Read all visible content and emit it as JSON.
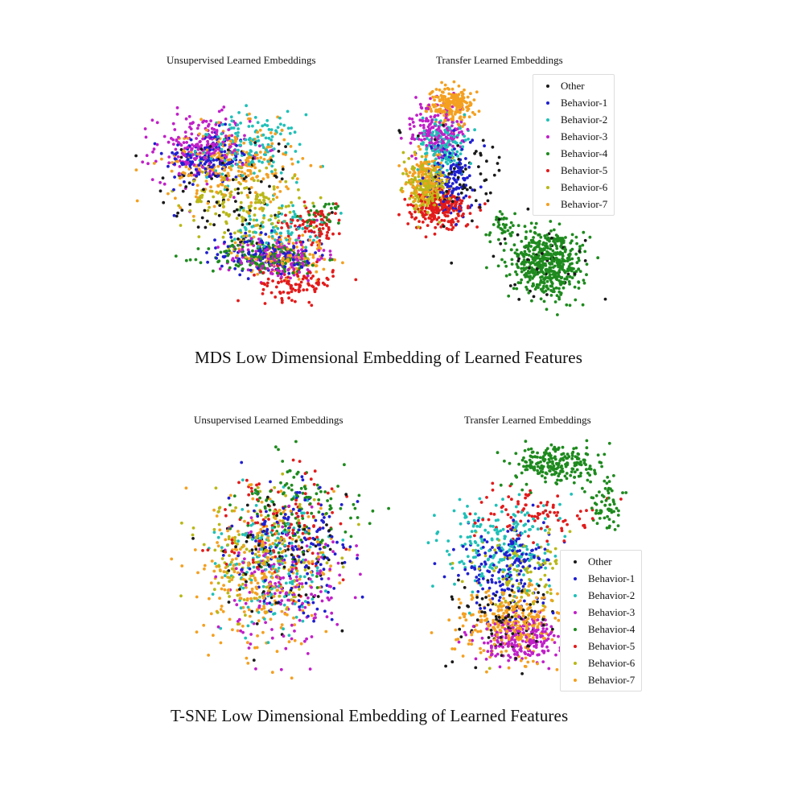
{
  "chart_data": [
    {
      "type": "scatter",
      "title": "Unsupervised Learned Embeddings",
      "group_title": "MDS Low Dimensional Embedding of Learned Features",
      "xlim": [
        0,
        100
      ],
      "ylim": [
        0,
        100
      ],
      "grid": false,
      "series": [
        {
          "name": "Other",
          "clusters": [
            {
              "cx": 40,
              "cy": 55,
              "sx": 28,
              "sy": 22,
              "n": 90
            }
          ]
        },
        {
          "name": "Behavior-1",
          "clusters": [
            {
              "cx": 30,
              "cy": 68,
              "sx": 16,
              "sy": 10,
              "n": 150
            },
            {
              "cx": 55,
              "cy": 30,
              "sx": 18,
              "sy": 8,
              "n": 120
            }
          ]
        },
        {
          "name": "Behavior-2",
          "clusters": [
            {
              "cx": 48,
              "cy": 72,
              "sx": 20,
              "sy": 12,
              "n": 150
            },
            {
              "cx": 60,
              "cy": 40,
              "sx": 16,
              "sy": 8,
              "n": 80
            }
          ]
        },
        {
          "name": "Behavior-3",
          "clusters": [
            {
              "cx": 28,
              "cy": 72,
              "sx": 18,
              "sy": 12,
              "n": 200
            },
            {
              "cx": 60,
              "cy": 28,
              "sx": 18,
              "sy": 8,
              "n": 150
            }
          ]
        },
        {
          "name": "Behavior-4",
          "clusters": [
            {
              "cx": 55,
              "cy": 28,
              "sx": 22,
              "sy": 6,
              "n": 160
            },
            {
              "cx": 80,
              "cy": 45,
              "sx": 8,
              "sy": 5,
              "n": 30
            }
          ]
        },
        {
          "name": "Behavior-5",
          "clusters": [
            {
              "cx": 75,
              "cy": 42,
              "sx": 12,
              "sy": 7,
              "n": 90
            },
            {
              "cx": 68,
              "cy": 18,
              "sx": 14,
              "sy": 6,
              "n": 100
            }
          ]
        },
        {
          "name": "Behavior-6",
          "clusters": [
            {
              "cx": 45,
              "cy": 50,
              "sx": 24,
              "sy": 14,
              "n": 150
            }
          ]
        },
        {
          "name": "Behavior-7",
          "clusters": [
            {
              "cx": 40,
              "cy": 65,
              "sx": 24,
              "sy": 14,
              "n": 250
            },
            {
              "cx": 62,
              "cy": 30,
              "sx": 18,
              "sy": 8,
              "n": 120
            }
          ]
        }
      ]
    },
    {
      "type": "scatter",
      "title": "Transfer Learned Embeddings",
      "group_title": "MDS Low Dimensional Embedding of Learned Features",
      "xlim": [
        0,
        100
      ],
      "ylim": [
        0,
        100
      ],
      "grid": false,
      "legend": "top-right",
      "series": [
        {
          "name": "Other",
          "clusters": [
            {
              "cx": 30,
              "cy": 60,
              "sx": 16,
              "sy": 18,
              "n": 60
            },
            {
              "cx": 65,
              "cy": 25,
              "sx": 20,
              "sy": 14,
              "n": 40
            }
          ]
        },
        {
          "name": "Behavior-1",
          "clusters": [
            {
              "cx": 25,
              "cy": 60,
              "sx": 10,
              "sy": 14,
              "n": 150
            }
          ]
        },
        {
          "name": "Behavior-2",
          "clusters": [
            {
              "cx": 22,
              "cy": 72,
              "sx": 9,
              "sy": 10,
              "n": 150
            }
          ]
        },
        {
          "name": "Behavior-3",
          "clusters": [
            {
              "cx": 20,
              "cy": 78,
              "sx": 10,
              "sy": 9,
              "n": 180
            }
          ]
        },
        {
          "name": "Behavior-4",
          "clusters": [
            {
              "cx": 66,
              "cy": 26,
              "sx": 14,
              "sy": 12,
              "n": 480
            },
            {
              "cx": 47,
              "cy": 40,
              "sx": 6,
              "sy": 6,
              "n": 40
            }
          ]
        },
        {
          "name": "Behavior-5",
          "clusters": [
            {
              "cx": 20,
              "cy": 47,
              "sx": 12,
              "sy": 7,
              "n": 220
            }
          ]
        },
        {
          "name": "Behavior-6",
          "clusters": [
            {
              "cx": 15,
              "cy": 55,
              "sx": 8,
              "sy": 10,
              "n": 200
            }
          ]
        },
        {
          "name": "Behavior-7",
          "clusters": [
            {
              "cx": 25,
              "cy": 88,
              "sx": 8,
              "sy": 6,
              "n": 220
            },
            {
              "cx": 14,
              "cy": 58,
              "sx": 8,
              "sy": 10,
              "n": 160
            }
          ]
        }
      ]
    },
    {
      "type": "scatter",
      "title": "Unsupervised Learned Embeddings",
      "group_title": "T-SNE Low Dimensional Embedding of Learned Features",
      "xlim": [
        0,
        100
      ],
      "ylim": [
        0,
        100
      ],
      "grid": false,
      "series": [
        {
          "name": "Other",
          "clusters": [
            {
              "cx": 50,
              "cy": 50,
              "sx": 26,
              "sy": 26,
              "n": 80
            }
          ]
        },
        {
          "name": "Behavior-1",
          "clusters": [
            {
              "cx": 55,
              "cy": 55,
              "sx": 22,
              "sy": 24,
              "n": 160
            }
          ]
        },
        {
          "name": "Behavior-2",
          "clusters": [
            {
              "cx": 45,
              "cy": 48,
              "sx": 24,
              "sy": 26,
              "n": 150
            }
          ]
        },
        {
          "name": "Behavior-3",
          "clusters": [
            {
              "cx": 52,
              "cy": 40,
              "sx": 22,
              "sy": 26,
              "n": 150
            }
          ]
        },
        {
          "name": "Behavior-4",
          "clusters": [
            {
              "cx": 58,
              "cy": 70,
              "sx": 22,
              "sy": 20,
              "n": 120
            }
          ]
        },
        {
          "name": "Behavior-5",
          "clusters": [
            {
              "cx": 50,
              "cy": 65,
              "sx": 24,
              "sy": 22,
              "n": 110
            }
          ]
        },
        {
          "name": "Behavior-6",
          "clusters": [
            {
              "cx": 40,
              "cy": 52,
              "sx": 24,
              "sy": 24,
              "n": 150
            }
          ]
        },
        {
          "name": "Behavior-7",
          "clusters": [
            {
              "cx": 42,
              "cy": 46,
              "sx": 24,
              "sy": 26,
              "n": 260
            }
          ]
        }
      ]
    },
    {
      "type": "scatter",
      "title": "Transfer Learned Embeddings",
      "group_title": "T-SNE Low Dimensional Embedding of Learned Features",
      "xlim": [
        0,
        100
      ],
      "ylim": [
        0,
        100
      ],
      "grid": false,
      "legend": "right",
      "series": [
        {
          "name": "Other",
          "clusters": [
            {
              "cx": 40,
              "cy": 25,
              "sx": 20,
              "sy": 14,
              "n": 90
            }
          ]
        },
        {
          "name": "Behavior-1",
          "clusters": [
            {
              "cx": 38,
              "cy": 48,
              "sx": 20,
              "sy": 16,
              "n": 180
            }
          ]
        },
        {
          "name": "Behavior-2",
          "clusters": [
            {
              "cx": 35,
              "cy": 55,
              "sx": 22,
              "sy": 16,
              "n": 200
            }
          ]
        },
        {
          "name": "Behavior-3",
          "clusters": [
            {
              "cx": 45,
              "cy": 18,
              "sx": 18,
              "sy": 9,
              "n": 220
            }
          ]
        },
        {
          "name": "Behavior-4",
          "clusters": [
            {
              "cx": 60,
              "cy": 88,
              "sx": 18,
              "sy": 7,
              "n": 220
            },
            {
              "cx": 82,
              "cy": 72,
              "sx": 7,
              "sy": 9,
              "n": 60
            }
          ]
        },
        {
          "name": "Behavior-5",
          "clusters": [
            {
              "cx": 50,
              "cy": 68,
              "sx": 24,
              "sy": 9,
              "n": 90
            }
          ]
        },
        {
          "name": "Behavior-6",
          "clusters": [
            {
              "cx": 45,
              "cy": 45,
              "sx": 20,
              "sy": 18,
              "n": 110
            }
          ]
        },
        {
          "name": "Behavior-7",
          "clusters": [
            {
              "cx": 40,
              "cy": 25,
              "sx": 22,
              "sy": 14,
              "n": 280
            }
          ]
        }
      ]
    }
  ],
  "colors": {
    "Other": "#1a1a1a",
    "Behavior-1": "#1f1fd0",
    "Behavior-2": "#20c0b8",
    "Behavior-3": "#c020c8",
    "Behavior-4": "#1e8a1e",
    "Behavior-5": "#e21b1b",
    "Behavior-6": "#b8b818",
    "Behavior-7": "#f4a020"
  },
  "legend_items": [
    "Other",
    "Behavior-1",
    "Behavior-2",
    "Behavior-3",
    "Behavior-4",
    "Behavior-5",
    "Behavior-6",
    "Behavior-7"
  ],
  "section_titles": {
    "mds": "MDS Low Dimensional Embedding of Learned Features",
    "tsne": "T-SNE Low Dimensional Embedding of Learned Features"
  }
}
